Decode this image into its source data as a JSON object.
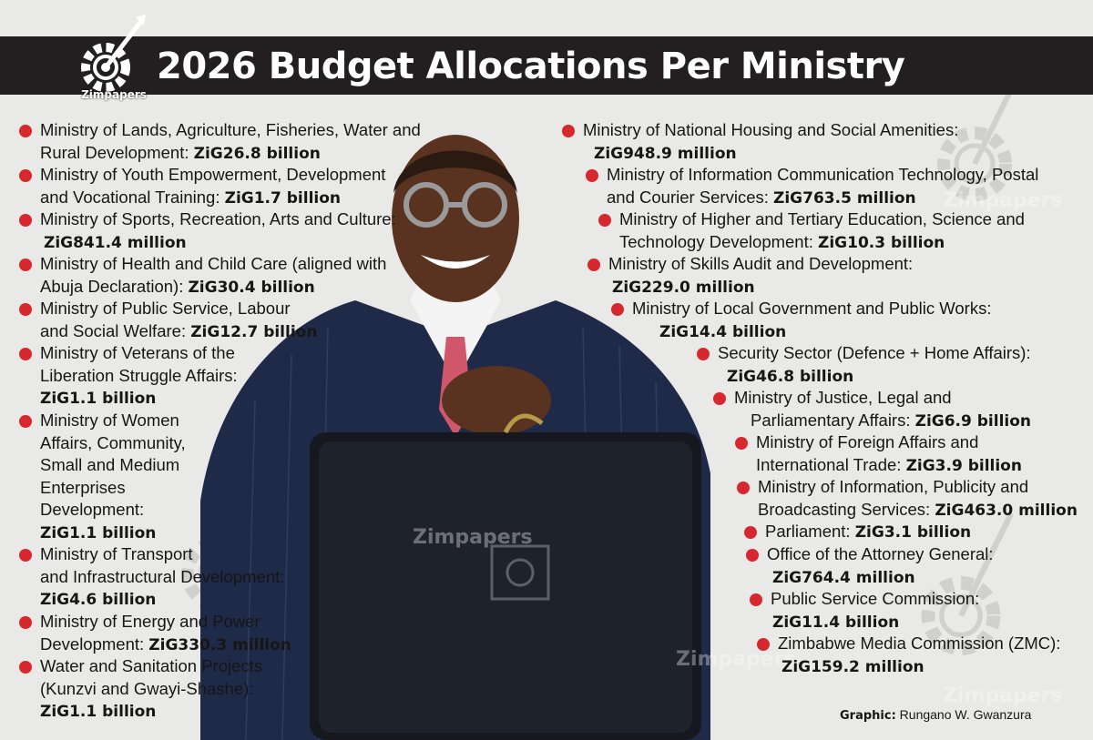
{
  "title": "2026 Budget Allocations Per Ministry",
  "brand": {
    "logo_text": "Zimpapers",
    "accent_color": "#d7282f",
    "bar_color": "#231f20"
  },
  "watermarks": [
    "Zimpapers",
    "Zimpapers",
    "Zimpapers",
    "Zimpapers"
  ],
  "allocations_left": [
    {
      "lines": [
        "Ministry of Lands, Agriculture, Fisheries, Water and",
        "Rural Development: "
      ],
      "amount": "ZiG26.8 billion"
    },
    {
      "lines": [
        "Ministry of Youth Empowerment, Development",
        "and Vocational Training: "
      ],
      "amount": "ZiG1.7 billion"
    },
    {
      "lines": [
        "Ministry of Sports, Recreation, Arts and Culture:",
        ""
      ],
      "amount": "ZiG841.4 million"
    },
    {
      "lines": [
        "Ministry of Health and Child Care (aligned with",
        "Abuja Declaration): "
      ],
      "amount": "ZiG30.4 billion"
    },
    {
      "lines": [
        "Ministry of Public Service, Labour",
        "and Social Welfare: "
      ],
      "amount": "ZiG12.7 billion"
    },
    {
      "lines": [
        "Ministry of Veterans of the",
        "Liberation Struggle Affairs:",
        ""
      ],
      "amount": "ZiG1.1 billion"
    },
    {
      "lines": [
        "Ministry of Women",
        "Affairs, Community,",
        "Small and Medium",
        "Enterprises",
        "Development:",
        ""
      ],
      "amount": "ZiG1.1 billion"
    },
    {
      "lines": [
        "Ministry of Transport",
        "and Infrastructural Development:",
        ""
      ],
      "amount": "ZiG4.6 billion"
    },
    {
      "lines": [
        "Ministry of Energy and Power",
        "Development: "
      ],
      "amount": "ZiG330.3 million"
    },
    {
      "lines": [
        "Water and Sanitation Projects",
        "(Kunzvi and Gwayi-Shashe):",
        ""
      ],
      "amount": "ZiG1.1 billion"
    }
  ],
  "allocations_right": [
    {
      "lines": [
        "Ministry of National Housing and Social Amenities:",
        ""
      ],
      "amount": "ZiG948.9 million"
    },
    {
      "lines": [
        "Ministry of Information Communication Technology, Postal",
        "and Courier Services: "
      ],
      "amount": "ZiG763.5 million"
    },
    {
      "lines": [
        "Ministry of Higher and Tertiary Education, Science and",
        "Technology Development: "
      ],
      "amount": "ZiG10.3 billion"
    },
    {
      "lines": [
        "Ministry of Skills Audit and Development:",
        ""
      ],
      "amount": "ZiG229.0 million"
    },
    {
      "lines": [
        "Ministry of Local Government and Public Works:",
        ""
      ],
      "amount": "ZiG14.4 billion"
    },
    {
      "lines": [
        "Security Sector (Defence + Home Affairs):",
        ""
      ],
      "amount": "ZiG46.8 billion"
    },
    {
      "lines": [
        "Ministry of Justice, Legal and",
        "Parliamentary Affairs: "
      ],
      "amount": "ZiG6.9 billion"
    },
    {
      "lines": [
        "Ministry of Foreign Affairs and",
        "International Trade: "
      ],
      "amount": "ZiG3.9 billion"
    },
    {
      "lines": [
        "Ministry of Information, Publicity and",
        "Broadcasting Services: "
      ],
      "amount": "ZiG463.0 million"
    },
    {
      "lines": [
        "Parliament: "
      ],
      "amount": "ZiG3.1 billion"
    },
    {
      "lines": [
        "Office of the Attorney General:",
        ""
      ],
      "amount": "ZiG764.4 million"
    },
    {
      "lines": [
        "Public Service Commission:",
        ""
      ],
      "amount": "ZiG11.4 billion"
    },
    {
      "lines": [
        "Zimbabwe Media Commission (ZMC):",
        ""
      ],
      "amount": "ZiG159.2 million"
    }
  ],
  "credit": {
    "label": "Graphic:",
    "name": "Rungano W. Gwanzura"
  }
}
